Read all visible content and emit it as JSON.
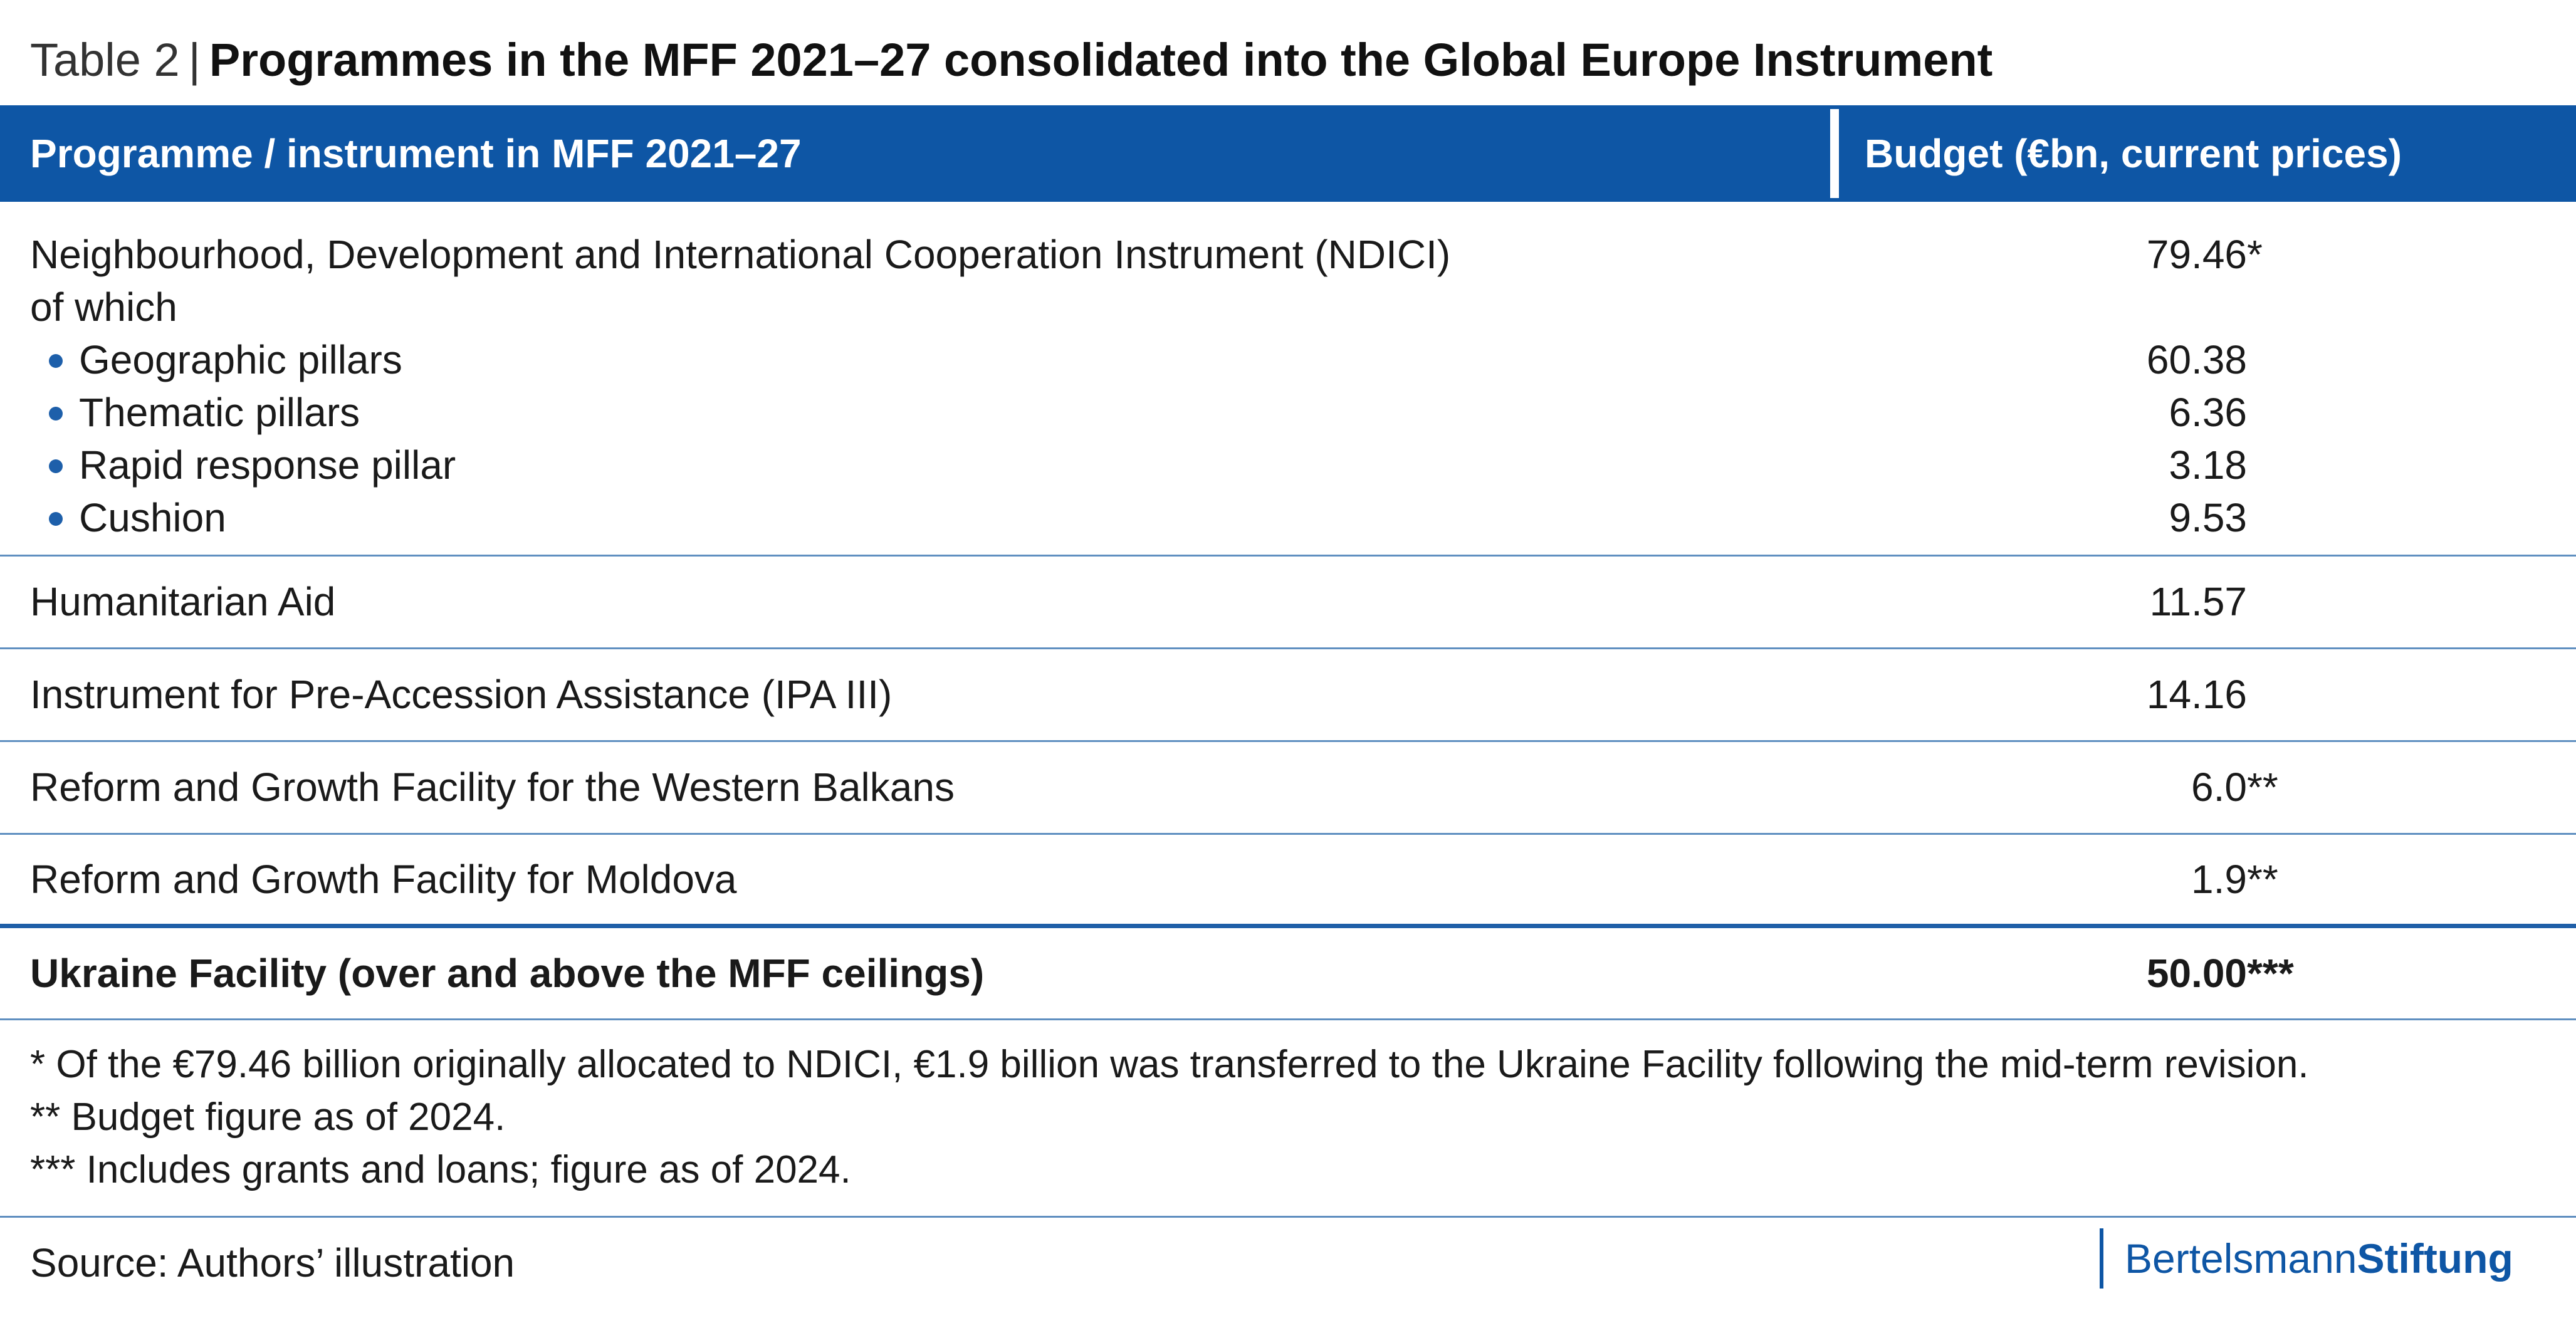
{
  "title": {
    "lead": "Table 2",
    "separator": "|",
    "main": "Programmes in the MFF 2021–27 consolidated into the Global Europe Instrument"
  },
  "header": {
    "col1": "Programme / instrument in MFF 2021–27",
    "col2": "Budget (€bn, current prices)"
  },
  "ndici": {
    "label": "Neighbourhood, Development and International Cooperation Instrument (NDICI)",
    "of_which": "of which",
    "value": "79.46",
    "value_mark": "*",
    "items": [
      {
        "label": "Geographic pillars",
        "value": "60.38"
      },
      {
        "label": "Thematic pillars",
        "value": "6.36"
      },
      {
        "label": "Rapid response pillar",
        "value": "3.18"
      },
      {
        "label": "Cushion",
        "value": "9.53"
      }
    ]
  },
  "rows": [
    {
      "label": "Humanitarian Aid",
      "value": "11.57",
      "mark": ""
    },
    {
      "label": "Instrument for Pre-Accession Assistance (IPA III)",
      "value": "14.16",
      "mark": ""
    },
    {
      "label": "Reform and Growth Facility for the Western Balkans",
      "value": "6.0",
      "mark": "**"
    },
    {
      "label": "Reform and Growth Facility for Moldova",
      "value": "1.9",
      "mark": "**"
    },
    {
      "label": "Ukraine Facility (over and above the MFF ceilings)",
      "value": "50.00",
      "mark": "***"
    }
  ],
  "footnotes": [
    "* Of the €79.46 billion originally allocated to NDICI, €1.9 billion was transferred to the Ukraine Facility following the mid-term revision.",
    "** Budget figure as of 2024.",
    "*** Includes grants and loans; figure as of 2024."
  ],
  "source": "Source: Authors’ illustration",
  "brand": {
    "part1": "Bertelsmann",
    "part2": "Stiftung"
  },
  "colors": {
    "header_bg": "#0e56a5",
    "rule": "#5f8fc0",
    "brand": "#0e56a5"
  }
}
